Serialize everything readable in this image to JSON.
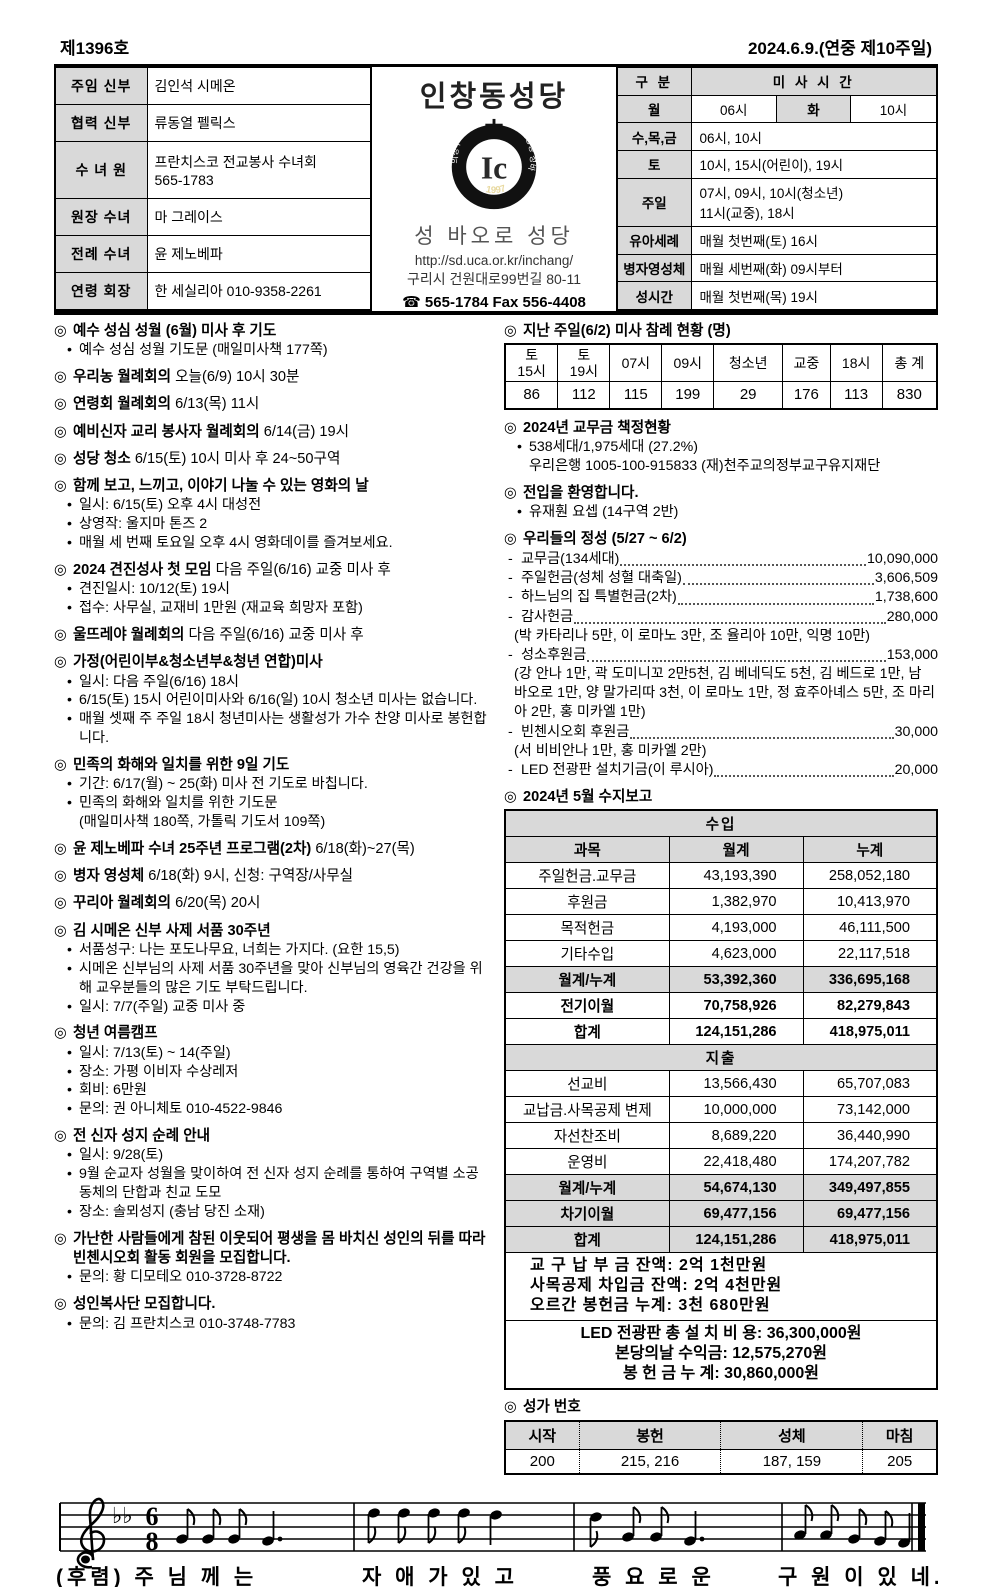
{
  "colors": {
    "shade": "#d9d9d9",
    "line": "#000000",
    "ink": "#000000"
  },
  "masthead": {
    "issue_no": "제1396호",
    "date": "2024.6.9.(연중 제10주일)"
  },
  "header": {
    "staff": [
      {
        "label": "주임 신부",
        "value": "김인석 시메온"
      },
      {
        "label": "협력 신부",
        "value": "류동열 펠릭스"
      },
      {
        "label": "수 녀 원",
        "value": "프란치스코 전교봉사 수녀회\n565-1783"
      },
      {
        "label": "원장 수녀",
        "value": "마 그레이스"
      },
      {
        "label": "전례 수녀",
        "value": "윤 제노베파"
      },
      {
        "label": "연령 회장",
        "value": "한 세실리아 010-9358-2261"
      }
    ],
    "parish": {
      "name": "인창동성당",
      "subtitle": "성 바오로 성당",
      "url": "http://sd.uca.or.kr/inchang/",
      "address": "구리시 건원대로99번길 80-11",
      "phone": "☎ 565-1784 Fax 556-4408",
      "logo_monogram": "Ic",
      "logo_year": "1997",
      "logo_ring_text_left": "의정부 교구",
      "logo_ring_text_right": "인창동 성바오로"
    },
    "mass_table": {
      "header_label": "구 분",
      "header_value": "미 사 시 간",
      "rows": [
        {
          "label": "월",
          "cells": [
            {
              "text": "06시"
            },
            {
              "text": "화",
              "shade": true
            },
            {
              "text": "10시"
            }
          ]
        },
        {
          "label": "수,목,금",
          "cells": [
            {
              "text": "06시, 10시",
              "span": 3
            }
          ]
        },
        {
          "label": "토",
          "cells": [
            {
              "text": "10시, 15시(어린이), 19시",
              "span": 3
            }
          ]
        },
        {
          "label": "주일",
          "cells": [
            {
              "text": "07시, 09시, 10시(청소년)\n11시(교중), 18시",
              "span": 3
            }
          ]
        },
        {
          "label": "유아세례",
          "cells": [
            {
              "text": "매월 첫번째(토) 16시",
              "span": 3
            }
          ]
        },
        {
          "label": "병자영성체",
          "cells": [
            {
              "text": "매월 세번째(화) 09시부터",
              "span": 3
            }
          ]
        },
        {
          "label": "성시간",
          "cells": [
            {
              "text": "매월 첫번째(목) 19시",
              "span": 3
            }
          ]
        }
      ]
    }
  },
  "left_sections": [
    {
      "title": "예수 성심 성월 (6월) 미사 후 기도",
      "items": [
        {
          "bullet": true,
          "text": "예수 성심 성월 기도문 (매일미사책 177쪽)"
        }
      ]
    },
    {
      "title": "우리농 월례회의",
      "suffix": " 오늘(6/9) 10시 30분"
    },
    {
      "title": "연령회 월례회의",
      "suffix": " 6/13(목) 11시"
    },
    {
      "title": "예비신자 교리 봉사자 월례회의",
      "suffix": " 6/14(금) 19시"
    },
    {
      "title": "성당 청소",
      "suffix": " 6/15(토) 10시 미사 후 24~50구역"
    },
    {
      "title": "함께 보고, 느끼고, 이야기 나눌 수 있는 영화의 날",
      "items": [
        {
          "bullet": true,
          "text": "일시: 6/15(토) 오후 4시 대성전"
        },
        {
          "bullet": true,
          "text": "상영작: 울지마 톤즈 2"
        },
        {
          "bullet": true,
          "text": "매월 세 번째 토요일 오후 4시 영화데이를 즐겨보세요."
        }
      ]
    },
    {
      "title": "2024 견진성사 첫 모임",
      "suffix": " 다음 주일(6/16) 교중 미사 후",
      "items": [
        {
          "bullet": true,
          "text": "견진일시: 10/12(토) 19시"
        },
        {
          "bullet": true,
          "text": "접수: 사무실, 교재비 1만원 (재교육 희망자 포함)"
        }
      ]
    },
    {
      "title": "울뜨레야 월례회의",
      "suffix": " 다음 주일(6/16) 교중 미사 후"
    },
    {
      "title": "가정(어린이부&청소년부&청년 연합)미사",
      "items": [
        {
          "bullet": true,
          "text": "일시: 다음 주일(6/16) 18시"
        },
        {
          "bullet": true,
          "text": "6/15(토) 15시 어린이미사와 6/16(일) 10시 청소년 미사는 없습니다."
        },
        {
          "bullet": true,
          "text": "매월 셋째 주 주일 18시 청년미사는 생활성가 가수 찬양 미사로 봉헌합니다."
        }
      ]
    },
    {
      "title": "민족의 화해와 일치를 위한 9일 기도",
      "items": [
        {
          "bullet": true,
          "text": "기간: 6/17(월) ~ 25(화) 미사 전 기도로 바칩니다."
        },
        {
          "bullet": true,
          "text": "민족의 화해와 일치를 위한 기도문"
        },
        {
          "bullet": false,
          "text": "(매일미사책 180쪽, 가톨릭 기도서 109쪽)"
        }
      ]
    },
    {
      "title": "윤 제노베파 수녀 25주년 프로그램(2차)",
      "suffix": " 6/18(화)~27(목)"
    },
    {
      "title": "병자 영성체",
      "suffix": " 6/18(화) 9시, 신청: 구역장/사무실"
    },
    {
      "title": "꾸리아 월례회의",
      "suffix": " 6/20(목) 20시"
    },
    {
      "title": "김 시메온 신부 사제 서품 30주년",
      "items": [
        {
          "bullet": true,
          "text": "서품성구: 나는 포도나무요, 너희는 가지다. (요한 15,5)"
        },
        {
          "bullet": true,
          "text": "시메온 신부님의 사제 서품 30주년을 맞아 신부님의 영육간 건강을 위해 교우분들의 많은 기도 부탁드립니다."
        },
        {
          "bullet": true,
          "text": "일시: 7/7(주일) 교중 미사 중"
        }
      ]
    },
    {
      "title": "청년 여름캠프",
      "items": [
        {
          "bullet": true,
          "text": "일시: 7/13(토) ~ 14(주일)"
        },
        {
          "bullet": true,
          "text": "장소: 가평 이비자 수상레저"
        },
        {
          "bullet": true,
          "text": "회비: 6만원"
        },
        {
          "bullet": true,
          "text": "문의: 권 아니체토 010-4522-9846"
        }
      ]
    },
    {
      "title": "전 신자 성지 순례 안내",
      "items": [
        {
          "bullet": true,
          "text": "일시: 9/28(토)"
        },
        {
          "bullet": true,
          "text": "9월 순교자 성월을 맞이하여 전 신자 성지 순례를 통하여 구역별 소공동체의 단합과 친교 도모"
        },
        {
          "bullet": true,
          "text": "장소: 솔뫼성지 (충남 당진 소재)"
        }
      ]
    },
    {
      "title": "가난한 사람들에게 참된 이웃되어 평생을 몸 바치신 성인의 뒤를 따라 빈첸시오회 활동 회원을 모집합니다.",
      "items": [
        {
          "bullet": true,
          "text": "문의: 황 디모테오 010-3728-8722"
        }
      ]
    },
    {
      "title": "성인복사단 모집합니다.",
      "items": [
        {
          "bullet": true,
          "text": "문의: 김 프란치스코 010-3748-7783"
        }
      ]
    }
  ],
  "right_column": {
    "attendance": {
      "title": "지난 주일(6/2) 미사 참례 현황 (명)",
      "headers": [
        [
          "토",
          "15시"
        ],
        [
          "토",
          "19시"
        ],
        [
          "07시"
        ],
        [
          "09시"
        ],
        [
          "청소년"
        ],
        [
          "교중"
        ],
        [
          "18시"
        ],
        [
          "총 계"
        ]
      ],
      "values": [
        "86",
        "112",
        "115",
        "199",
        "29",
        "176",
        "113",
        "830"
      ]
    },
    "dues": {
      "title": "2024년 교무금 책정현황",
      "items": [
        {
          "bullet": true,
          "text": "538세대/1,975세대 (27.2%)"
        },
        {
          "bullet": false,
          "text": "우리은행 1005-100-915833  (재)천주교의정부교구유지재단"
        }
      ]
    },
    "welcome": {
      "title": "전입을 환영합니다.",
      "items": [
        {
          "bullet": true,
          "text": "유재훤 요셉 (14구역 2반)"
        }
      ]
    },
    "offerings": {
      "title": "우리들의 정성 (5/27 ~ 6/2)",
      "entries": [
        {
          "label": "교무금(134세대)",
          "amount": "10,090,000"
        },
        {
          "label": "주일헌금(성체 성혈 대축일)",
          "amount": "3,606,509"
        },
        {
          "label": "하느님의 집 특별헌금(2차)",
          "amount": "1,738,600"
        },
        {
          "label": "감사헌금",
          "amount": "280,000"
        },
        {
          "note": "(박 카타리나 5만, 이 로마노 3만, 조 율리아 10만, 익명 10만)"
        },
        {
          "label": "성소후원금",
          "amount": "153,000"
        },
        {
          "note": "(강 안나 1만, 곽 도미니꼬 2만5천, 김 베네딕도 5천, 김 베드로 1만, 남 바오로 1만, 양 말가리따 3천, 이 로마노 1만, 정 효주아녜스 5만, 조 마리아 2만, 홍 미카엘 1만)"
        },
        {
          "label": "빈첸시오회 후원금",
          "amount": "30,000"
        },
        {
          "note": "(서 비비안나 1만, 홍 미카엘 2만)"
        },
        {
          "label": "LED 전광판 설치기금(이 루시아)",
          "amount": "20,000"
        }
      ]
    },
    "finance": {
      "title": "2024년 5월 수지보고",
      "income_header": "수입",
      "col_headers": [
        "과목",
        "월계",
        "누계"
      ],
      "income_rows": [
        {
          "c": [
            "주일헌금.교무금",
            "43,193,390",
            "258,052,180"
          ]
        },
        {
          "c": [
            "후원금",
            "1,382,970",
            "10,413,970"
          ]
        },
        {
          "c": [
            "목적헌금",
            "4,193,000",
            "46,111,500"
          ]
        },
        {
          "c": [
            "기타수입",
            "4,623,000",
            "22,117,518"
          ]
        },
        {
          "c": [
            "월계/누계",
            "53,392,360",
            "336,695,168"
          ],
          "shade": true,
          "bold": true
        },
        {
          "c": [
            "전기이월",
            "70,758,926",
            "82,279,843"
          ],
          "bold": true
        },
        {
          "c": [
            "합계",
            "124,151,286",
            "418,975,011"
          ],
          "bold": true
        }
      ],
      "expense_header": "지출",
      "expense_rows": [
        {
          "c": [
            "선교비",
            "13,566,430",
            "65,707,083"
          ]
        },
        {
          "c": [
            "교납금.사목공제 변제",
            "10,000,000",
            "73,142,000"
          ]
        },
        {
          "c": [
            "자선찬조비",
            "8,689,220",
            "36,440,990"
          ]
        },
        {
          "c": [
            "운영비",
            "22,418,480",
            "174,207,782"
          ]
        },
        {
          "c": [
            "월계/누계",
            "54,674,130",
            "349,497,855"
          ],
          "shade": true,
          "bold": true
        },
        {
          "c": [
            "차기이월",
            "69,477,156",
            "69,477,156"
          ],
          "shade": true,
          "bold": true
        },
        {
          "c": [
            "합계",
            "124,151,286",
            "418,975,011"
          ],
          "shade": true,
          "bold": true
        }
      ],
      "balance_notes": [
        "교 구 납 부 금 잔액: 2억 1천만원",
        "사목공제 차입금 잔액: 2억 4천만원",
        "오르간 봉헌금 누계: 3천 680만원"
      ],
      "led_notes": [
        "LED 전광판 총 설 치 비 용: 36,300,000원",
        "본당의날 수익금: 12,575,270원",
        "봉 헌 금 누 계: 30,860,000원"
      ]
    },
    "hymns": {
      "title": "성가 번호",
      "headers": [
        "시작",
        "봉헌",
        "성체",
        "마침"
      ],
      "values": [
        "200",
        "215, 216",
        "187, 159",
        "205"
      ]
    }
  },
  "music": {
    "time_signature_top": "6",
    "time_signature_bottom": "8",
    "key_flats": "♭♭",
    "lyrics_groups": [
      "(후렴) 주 님 께 는",
      "자 애 가 있 고",
      "풍 요 로 운",
      "구 원 이 있 네."
    ]
  }
}
